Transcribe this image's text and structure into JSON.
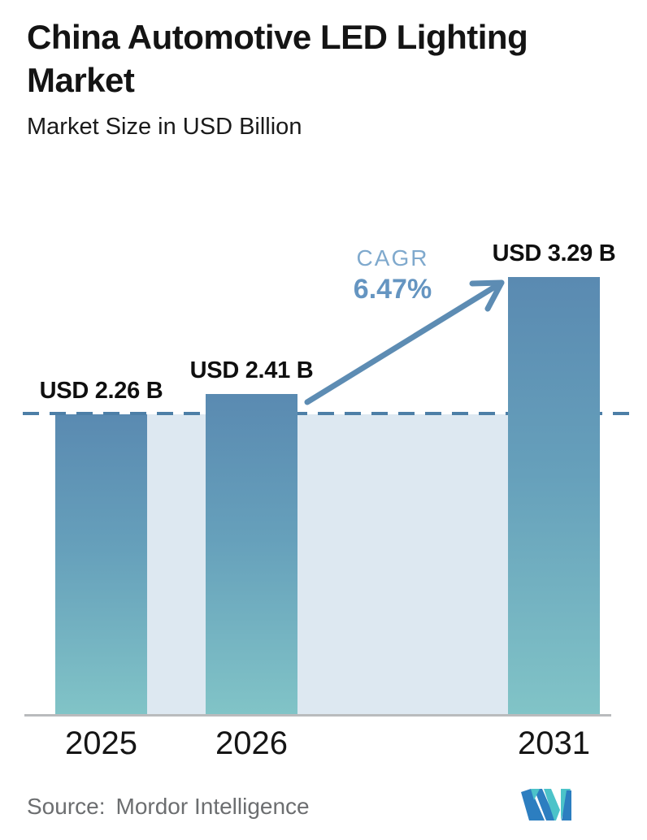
{
  "header": {
    "title": "China Automotive LED Lighting Market",
    "subtitle": "Market Size in USD Billion"
  },
  "chart_data": {
    "type": "bar",
    "title": "China Automotive LED Lighting Market",
    "subtitle": "Market Size in USD Billion",
    "unit": "USD Billion",
    "categories": [
      "2025",
      "2026",
      "2031"
    ],
    "values": [
      2.26,
      2.41,
      3.29
    ],
    "bar_labels": [
      "USD 2.26 B",
      "USD 2.41 B",
      "USD 3.29 B"
    ],
    "ylim": [
      0,
      3.6
    ],
    "grid": false,
    "legend": "none",
    "baseline_reference": {
      "value": 2.26,
      "style": "dashed-line",
      "shaded_area_below": true
    },
    "cagr": {
      "label": "CAGR",
      "value": "6.47%"
    },
    "annotation_arrow": "from 2026 bar up to 2031 bar"
  },
  "footer": {
    "source_label": "Source:",
    "source_value": "Mordor Intelligence"
  },
  "colors": {
    "bar_gradient_top": "#5a8ab1",
    "bar_gradient_bottom": "#81c4c7",
    "band": "#dde8f1",
    "dashed_line": "#4d7fa7",
    "arrow": "#5d8cb3",
    "cagr_label_text": "#7fa9cd",
    "cagr_value_text": "#6595c1",
    "axis_line": "#b9bbbd",
    "title_text": "#141414",
    "source_text": "#6c6e70",
    "logo_teal": "#4cc3c9",
    "logo_blue": "#2c7ec0"
  }
}
